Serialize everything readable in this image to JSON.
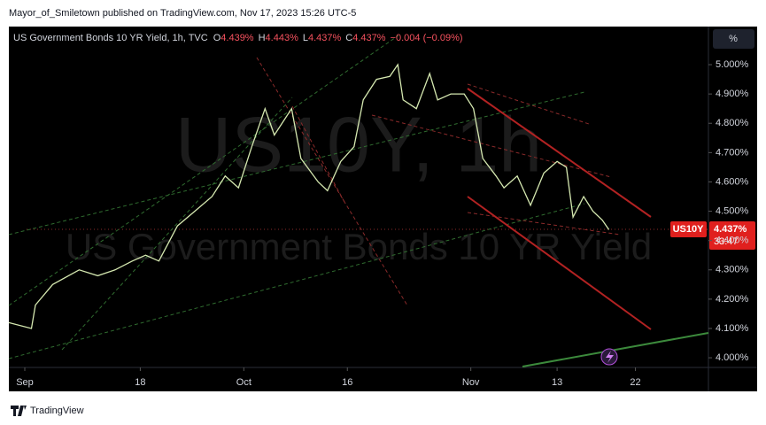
{
  "header": "Mayor_of_Smiletown published on TradingView.com, Nov 17, 2023 15:26 UTC-5",
  "footer": "TradingView",
  "scale_button": "%",
  "chart_data": {
    "type": "line",
    "title": "US Government Bonds 10 YR Yield, 1h, TVC",
    "ohlc": [
      {
        "label": "O",
        "value": "4.439%"
      },
      {
        "label": "H",
        "value": "4.443%"
      },
      {
        "label": "L",
        "value": "4.437%"
      },
      {
        "label": "C",
        "value": "4.437%"
      }
    ],
    "change": "−0.004 (−0.09%)",
    "watermark": [
      "US10Y, 1h",
      "US Government Bonds 10 YR Yield"
    ],
    "price_tag": {
      "symbol": "US10Y",
      "last": "4.437%",
      "countdown": "33:47"
    },
    "x": [
      0,
      17,
      20,
      33,
      53,
      67,
      80,
      93,
      103,
      113,
      127,
      140,
      153,
      163,
      173,
      183,
      193,
      200,
      213,
      220,
      233,
      240,
      250,
      260,
      267,
      277,
      287,
      293,
      297,
      307,
      317,
      323,
      333,
      343,
      350,
      357,
      367,
      373,
      383,
      393,
      403,
      413,
      420,
      425,
      433,
      440,
      447,
      452
    ],
    "series": [
      {
        "color": "#d5e8b0",
        "values": [
          4.12,
          4.1,
          4.18,
          4.25,
          4.3,
          4.28,
          4.3,
          4.33,
          4.35,
          4.33,
          4.45,
          4.5,
          4.55,
          4.62,
          4.58,
          4.72,
          4.85,
          4.76,
          4.85,
          4.68,
          4.6,
          4.57,
          4.67,
          4.72,
          4.88,
          4.95,
          4.96,
          5.0,
          4.88,
          4.85,
          4.97,
          4.88,
          4.9,
          4.9,
          4.85,
          4.68,
          4.62,
          4.58,
          4.62,
          4.52,
          4.63,
          4.67,
          4.65,
          4.48,
          4.55,
          4.5,
          4.47,
          4.437
        ]
      }
    ],
    "xlim": [
      0,
      527
    ],
    "xticks": [
      {
        "value": 12,
        "label": "Sep"
      },
      {
        "value": 99,
        "label": "18"
      },
      {
        "value": 177,
        "label": "Oct"
      },
      {
        "value": 255,
        "label": "16"
      },
      {
        "value": 348,
        "label": "Nov"
      },
      {
        "value": 413,
        "label": "13"
      },
      {
        "value": 472,
        "label": "22"
      }
    ],
    "ylim": [
      3.967,
      5.13
    ],
    "yticks": [
      {
        "value": 4.0,
        "label": "4.000%"
      },
      {
        "value": 4.1,
        "label": "4.100%"
      },
      {
        "value": 4.2,
        "label": "4.200%"
      },
      {
        "value": 4.3,
        "label": "4.300%"
      },
      {
        "value": 4.4,
        "label": "4.400%"
      },
      {
        "value": 4.5,
        "label": "4.500%"
      },
      {
        "value": 4.6,
        "label": "4.600%"
      },
      {
        "value": 4.7,
        "label": "4.700%"
      },
      {
        "value": 4.8,
        "label": "4.800%"
      },
      {
        "value": 4.9,
        "label": "4.900%"
      },
      {
        "value": 5.0,
        "label": "5.000%"
      }
    ],
    "grid": false
  }
}
